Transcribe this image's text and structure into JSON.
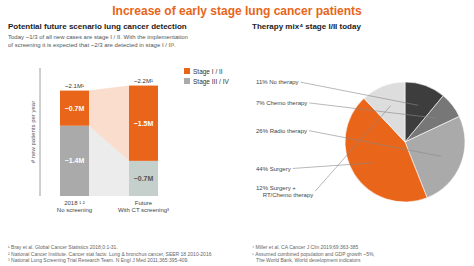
{
  "chart_data": [
    {
      "type": "bar",
      "stacked": true,
      "title": "Increase of early stage lung cancer patients",
      "subtitle": "Potential future scenario lung cancer detection",
      "description": "Today ~1/3 of all new cases are stage I / II. With the implementation\nof screening it is expected that ~2/3 are detected in stage I / II³.",
      "categories": [
        "2018 ¹ ²\nNo screening",
        "Future\nWith CT screening³"
      ],
      "series": [
        {
          "name": "Stage III / IV",
          "colors": [
            "#AAAAAA",
            "#C5D0CC"
          ],
          "values": [
            1.4,
            0.7
          ],
          "value_labels": [
            "~1.4M",
            "~0.7M"
          ]
        },
        {
          "name": "Stage I / II",
          "color": "#E8651A",
          "values": [
            0.7,
            1.5
          ],
          "value_labels": [
            "~0.7M",
            "~1.5M"
          ]
        }
      ],
      "totals": [
        2.1,
        2.2
      ],
      "total_labels": [
        "~2.1M¹",
        "~2.2M¹"
      ],
      "ylabel": "# new patients per year",
      "ylim": [
        0,
        2.55
      ],
      "yticks": [],
      "tick_labels": "x",
      "grid": false,
      "legend": "upper right",
      "data_labels": true,
      "footnotes": "¹ Bray et al. Global Cancer Statistics 2018;0:1-31.\n² National Cancer Institute. Cancer stat facts: Lung & bronchus cancer, SEER 18 2010-2016\n³ National Lung Screening Trial Research Team. N Engl J Med 2011;365:395-409."
    },
    {
      "type": "pie",
      "subtitle": "Therapy mix⁴ stage I/II today",
      "categories": [
        "11% No therapy",
        "7% Chemo therapy",
        "26% Radio therapy",
        "44% Surgery",
        "12% Surgery +\n    RT/Chemo therapy"
      ],
      "values": [
        11,
        7,
        26,
        44,
        12
      ],
      "colors": [
        "#3D3D3D",
        "#777777",
        "#AAAAAA",
        "#E8651A",
        "#DDDDDD"
      ],
      "footnotes": "⁴ Miller et al. CA Cancer J Clin 2019;69:363-385\n⁵ Assumed combined population and GDP growth ~5%,\n   The World Bank, World development indicators"
    }
  ]
}
